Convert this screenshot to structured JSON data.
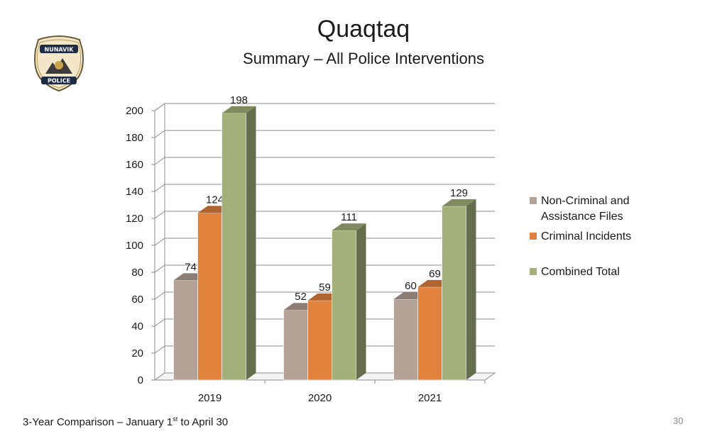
{
  "slide": {
    "title": "Quaqtaq",
    "subtitle": "Summary – All Police Interventions",
    "footer_prefix": "3-Year Comparison – January 1",
    "footer_sup": "st",
    "footer_suffix": " to April 30",
    "page_number": "30"
  },
  "logo": {
    "top_text": "NUNAVIK",
    "bottom_text": "POLICE"
  },
  "colors": {
    "non_criminal": "#b3a298",
    "criminal": "#e2823f",
    "combined": "#a4b07a"
  },
  "chart_data": {
    "type": "bar",
    "categories": [
      "2019",
      "2020",
      "2021"
    ],
    "series": [
      {
        "name": "Non-Criminal and Assistance Files",
        "values": [
          74,
          52,
          60
        ],
        "color": "#b3a298"
      },
      {
        "name": "Criminal Incidents",
        "values": [
          124,
          59,
          69
        ],
        "color": "#e2823f"
      },
      {
        "name": "Combined Total",
        "values": [
          198,
          111,
          129
        ],
        "color": "#a4b07a"
      }
    ],
    "ylim": [
      0,
      200
    ],
    "yticks": [
      0,
      20,
      40,
      60,
      80,
      100,
      120,
      140,
      160,
      180,
      200
    ],
    "grid": true,
    "legend_position": "right",
    "three_d": true
  }
}
